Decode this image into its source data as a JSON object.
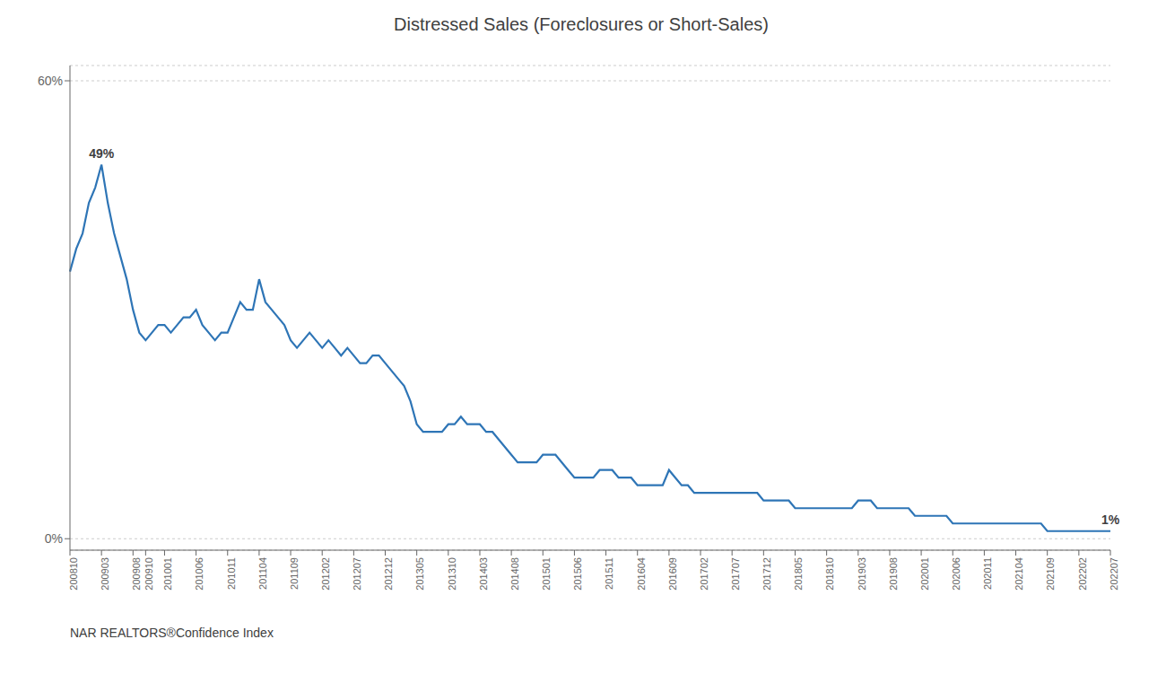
{
  "chart_data": {
    "type": "line",
    "title": "Distressed Sales (Foreclosures or Short-Sales)",
    "source": "NAR REALTORS®Confidence Index",
    "color": "#2E75B6",
    "grid": true,
    "categories": [
      "200810",
      null,
      null,
      null,
      null,
      "200903",
      null,
      null,
      null,
      null,
      "200908",
      null,
      "200910",
      null,
      null,
      "201001",
      null,
      null,
      null,
      null,
      "201006",
      null,
      null,
      null,
      null,
      "201011",
      null,
      null,
      null,
      null,
      "201104",
      null,
      null,
      null,
      null,
      "201109",
      null,
      null,
      null,
      null,
      "201202",
      null,
      null,
      null,
      null,
      "201207",
      null,
      null,
      null,
      null,
      "201212",
      null,
      null,
      null,
      null,
      "201305",
      null,
      null,
      null,
      null,
      "201310",
      null,
      null,
      null,
      null,
      "201403",
      null,
      null,
      null,
      null,
      "201408",
      null,
      null,
      null,
      null,
      "201501",
      null,
      null,
      null,
      null,
      "201506",
      null,
      null,
      null,
      null,
      "201511",
      null,
      null,
      null,
      null,
      "201604",
      null,
      null,
      null,
      null,
      "201609",
      null,
      null,
      null,
      null,
      "201702",
      null,
      null,
      null,
      null,
      "201707",
      null,
      null,
      null,
      null,
      "201712",
      null,
      null,
      null,
      null,
      "201805",
      null,
      null,
      null,
      null,
      "201810",
      null,
      null,
      null,
      null,
      "201903",
      null,
      null,
      null,
      null,
      "201908",
      null,
      null,
      null,
      null,
      "202001",
      null,
      null,
      null,
      null,
      "202006",
      null,
      null,
      null,
      null,
      "202011",
      null,
      null,
      null,
      null,
      "202104",
      null,
      null,
      null,
      null,
      "202109",
      null,
      null,
      null,
      null,
      "202202",
      null,
      null,
      null,
      null,
      "202207"
    ],
    "values": [
      0.35,
      0.38,
      0.4,
      0.44,
      0.46,
      0.49,
      0.44,
      0.4,
      0.37,
      0.34,
      0.3,
      0.27,
      0.26,
      0.27,
      0.28,
      0.28,
      0.27,
      0.28,
      0.29,
      0.29,
      0.3,
      0.28,
      0.27,
      0.26,
      0.27,
      0.27,
      0.29,
      0.31,
      0.3,
      0.3,
      0.34,
      0.31,
      0.3,
      0.29,
      0.28,
      0.26,
      0.25,
      0.26,
      0.27,
      0.26,
      0.25,
      0.26,
      0.25,
      0.24,
      0.25,
      0.24,
      0.23,
      0.23,
      0.24,
      0.24,
      0.23,
      0.22,
      0.21,
      0.2,
      0.18,
      0.15,
      0.14,
      0.14,
      0.14,
      0.14,
      0.15,
      0.15,
      0.16,
      0.15,
      0.15,
      0.15,
      0.14,
      0.14,
      0.13,
      0.12,
      0.11,
      0.1,
      0.1,
      0.1,
      0.1,
      0.11,
      0.11,
      0.11,
      0.1,
      0.09,
      0.08,
      0.08,
      0.08,
      0.08,
      0.09,
      0.09,
      0.09,
      0.08,
      0.08,
      0.08,
      0.07,
      0.07,
      0.07,
      0.07,
      0.07,
      0.09,
      0.08,
      0.07,
      0.07,
      0.06,
      0.06,
      0.06,
      0.06,
      0.06,
      0.06,
      0.06,
      0.06,
      0.06,
      0.06,
      0.06,
      0.05,
      0.05,
      0.05,
      0.05,
      0.05,
      0.04,
      0.04,
      0.04,
      0.04,
      0.04,
      0.04,
      0.04,
      0.04,
      0.04,
      0.04,
      0.05,
      0.05,
      0.05,
      0.04,
      0.04,
      0.04,
      0.04,
      0.04,
      0.04,
      0.03,
      0.03,
      0.03,
      0.03,
      0.03,
      0.03,
      0.02,
      0.02,
      0.02,
      0.02,
      0.02,
      0.02,
      0.02,
      0.02,
      0.02,
      0.02,
      0.02,
      0.02,
      0.02,
      0.02,
      0.02,
      0.01,
      0.01,
      0.01,
      0.01,
      0.01,
      0.01,
      0.01,
      0.01,
      0.01,
      0.01,
      0.01
    ],
    "ylim": [
      -0.015,
      0.62
    ],
    "yticks": [
      {
        "value": 0,
        "label": "0%"
      },
      {
        "value": 0.6,
        "label": "60%"
      }
    ],
    "annotations": [
      {
        "x": "200903",
        "y": 0.49,
        "text": "49%"
      },
      {
        "x": "202207",
        "y": 0.01,
        "text": "1%"
      }
    ]
  }
}
